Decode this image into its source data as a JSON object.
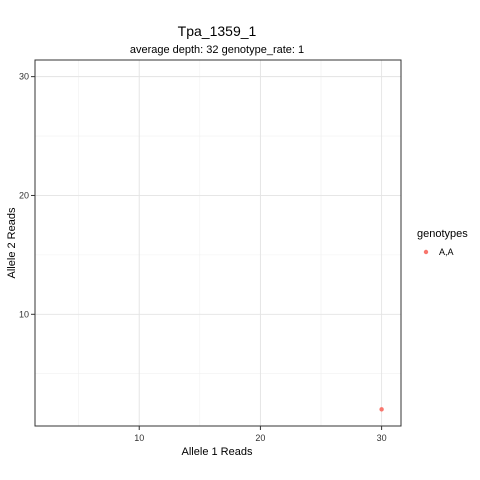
{
  "chart_data": {
    "type": "scatter",
    "title": "Tpa_1359_1",
    "subtitle": "average depth:  32  genotype_rate:  1",
    "xlabel": "Allele 1 Reads",
    "ylabel": "Allele 2 Reads",
    "xlim": [
      1.4,
      31.6
    ],
    "ylim": [
      0.6,
      31.4
    ],
    "x_ticks": [
      10,
      20,
      30
    ],
    "y_ticks": [
      10,
      20,
      30
    ],
    "x_minor_ticks": [
      5,
      15,
      25
    ],
    "y_minor_ticks": [
      5,
      15,
      25
    ],
    "grid": true,
    "legend": {
      "title": "genotypes",
      "position": "right",
      "entries": [
        {
          "label": "A,A",
          "color": "#F8766D"
        }
      ]
    },
    "series": [
      {
        "name": "A,A",
        "color": "#F8766D",
        "points": [
          {
            "x": 30,
            "y": 2
          }
        ]
      }
    ]
  }
}
